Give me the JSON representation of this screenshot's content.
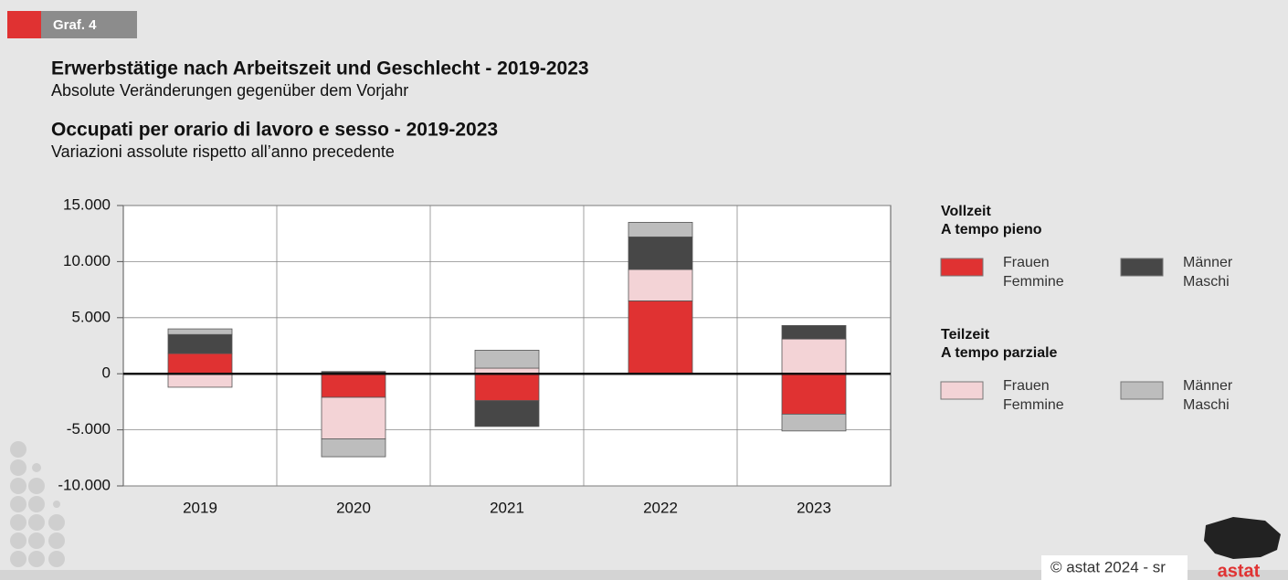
{
  "header": {
    "label": "Graf. 4"
  },
  "titles": {
    "de_title": "Erwerbstätige nach Arbeitszeit und Geschlecht - 2019-2023",
    "de_subtitle": "Absolute Veränderungen gegenüber dem Vorjahr",
    "it_title": "Occupati per orario di lavoro e sesso - 2019-2023",
    "it_subtitle": "Variazioni assolute rispetto all’anno precedente"
  },
  "chart_data": {
    "type": "stacked_bar",
    "categories": [
      "2019",
      "2020",
      "2021",
      "2022",
      "2023"
    ],
    "ylim": [
      -10000,
      15000
    ],
    "yticks": [
      {
        "value": -10000,
        "label": "-10.000"
      },
      {
        "value": -5000,
        "label": "-5.000"
      },
      0,
      {
        "value": 5000,
        "label": "5.000"
      },
      {
        "value": 10000,
        "label": "10.000"
      },
      {
        "value": 15000,
        "label": "15.000"
      }
    ],
    "grid": true,
    "legend_titles": [
      [
        "Vollzeit",
        "A tempo pieno"
      ],
      [
        "Teilzeit",
        "A tempo parziale"
      ]
    ],
    "series": [
      {
        "name": [
          "Frauen",
          "Femmine"
        ],
        "color": "#e03232",
        "values": [
          1800,
          -2100,
          -2400,
          6500,
          -3600
        ]
      },
      {
        "name": [
          "Frauen",
          "Femmine"
        ],
        "color": "#f3d3d6",
        "values": [
          -1200,
          -3700,
          500,
          2800,
          3100
        ]
      },
      {
        "name": [
          "Männer",
          "Maschi"
        ],
        "color": "#474747",
        "values": [
          1700,
          200,
          -2300,
          2900,
          1200
        ]
      },
      {
        "name": [
          "Männer",
          "Maschi"
        ],
        "color": "#bdbdbd",
        "values": [
          500,
          -1600,
          1600,
          1300,
          -1500
        ]
      }
    ]
  },
  "footer": {
    "credit": "© astat 2024 - sr",
    "logo": "astat"
  }
}
